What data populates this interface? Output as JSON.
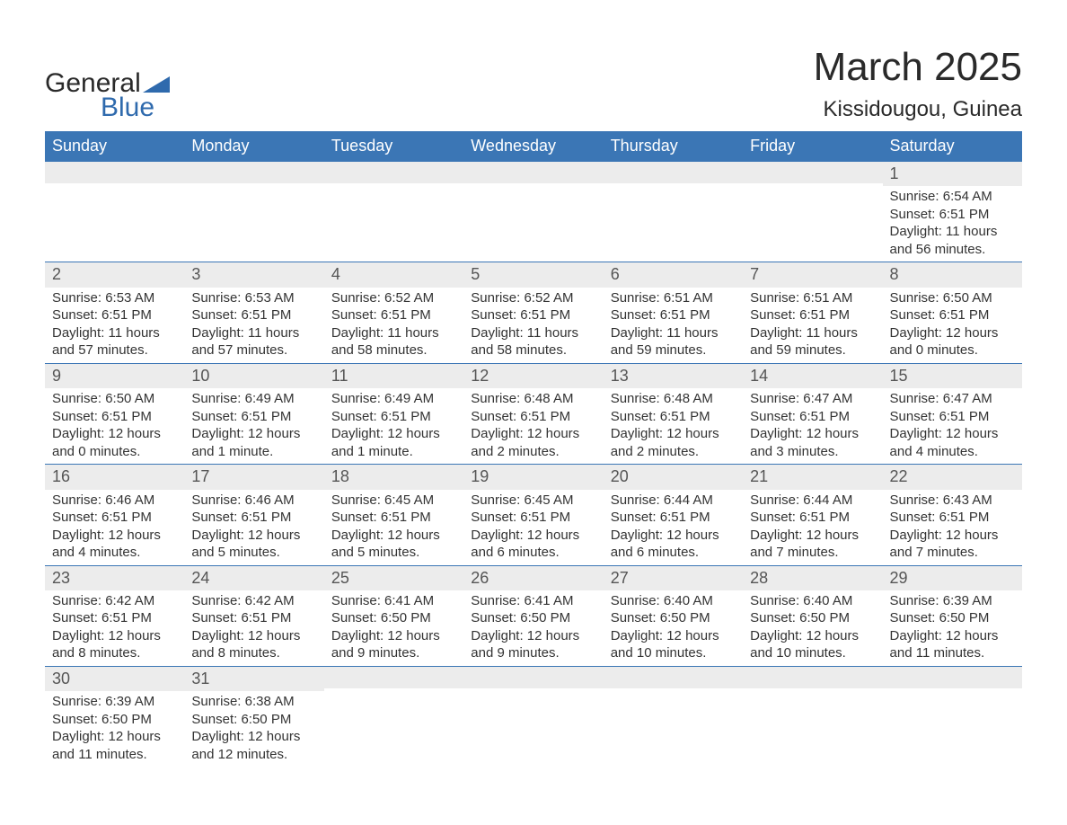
{
  "logo": {
    "text1": "General",
    "text2": "Blue",
    "accent_color": "#2f6aad"
  },
  "title": {
    "month": "March 2025",
    "location": "Kissidougou, Guinea"
  },
  "colors": {
    "header_bg": "#3b76b5",
    "header_text": "#ffffff",
    "daynum_bg": "#ececec",
    "row_border": "#3b76b5",
    "body_text": "#333333"
  },
  "weekdays": [
    "Sunday",
    "Monday",
    "Tuesday",
    "Wednesday",
    "Thursday",
    "Friday",
    "Saturday"
  ],
  "leading_blanks": 6,
  "days": [
    {
      "n": "1",
      "sunrise": "Sunrise: 6:54 AM",
      "sunset": "Sunset: 6:51 PM",
      "daylight": "Daylight: 11 hours and 56 minutes."
    },
    {
      "n": "2",
      "sunrise": "Sunrise: 6:53 AM",
      "sunset": "Sunset: 6:51 PM",
      "daylight": "Daylight: 11 hours and 57 minutes."
    },
    {
      "n": "3",
      "sunrise": "Sunrise: 6:53 AM",
      "sunset": "Sunset: 6:51 PM",
      "daylight": "Daylight: 11 hours and 57 minutes."
    },
    {
      "n": "4",
      "sunrise": "Sunrise: 6:52 AM",
      "sunset": "Sunset: 6:51 PM",
      "daylight": "Daylight: 11 hours and 58 minutes."
    },
    {
      "n": "5",
      "sunrise": "Sunrise: 6:52 AM",
      "sunset": "Sunset: 6:51 PM",
      "daylight": "Daylight: 11 hours and 58 minutes."
    },
    {
      "n": "6",
      "sunrise": "Sunrise: 6:51 AM",
      "sunset": "Sunset: 6:51 PM",
      "daylight": "Daylight: 11 hours and 59 minutes."
    },
    {
      "n": "7",
      "sunrise": "Sunrise: 6:51 AM",
      "sunset": "Sunset: 6:51 PM",
      "daylight": "Daylight: 11 hours and 59 minutes."
    },
    {
      "n": "8",
      "sunrise": "Sunrise: 6:50 AM",
      "sunset": "Sunset: 6:51 PM",
      "daylight": "Daylight: 12 hours and 0 minutes."
    },
    {
      "n": "9",
      "sunrise": "Sunrise: 6:50 AM",
      "sunset": "Sunset: 6:51 PM",
      "daylight": "Daylight: 12 hours and 0 minutes."
    },
    {
      "n": "10",
      "sunrise": "Sunrise: 6:49 AM",
      "sunset": "Sunset: 6:51 PM",
      "daylight": "Daylight: 12 hours and 1 minute."
    },
    {
      "n": "11",
      "sunrise": "Sunrise: 6:49 AM",
      "sunset": "Sunset: 6:51 PM",
      "daylight": "Daylight: 12 hours and 1 minute."
    },
    {
      "n": "12",
      "sunrise": "Sunrise: 6:48 AM",
      "sunset": "Sunset: 6:51 PM",
      "daylight": "Daylight: 12 hours and 2 minutes."
    },
    {
      "n": "13",
      "sunrise": "Sunrise: 6:48 AM",
      "sunset": "Sunset: 6:51 PM",
      "daylight": "Daylight: 12 hours and 2 minutes."
    },
    {
      "n": "14",
      "sunrise": "Sunrise: 6:47 AM",
      "sunset": "Sunset: 6:51 PM",
      "daylight": "Daylight: 12 hours and 3 minutes."
    },
    {
      "n": "15",
      "sunrise": "Sunrise: 6:47 AM",
      "sunset": "Sunset: 6:51 PM",
      "daylight": "Daylight: 12 hours and 4 minutes."
    },
    {
      "n": "16",
      "sunrise": "Sunrise: 6:46 AM",
      "sunset": "Sunset: 6:51 PM",
      "daylight": "Daylight: 12 hours and 4 minutes."
    },
    {
      "n": "17",
      "sunrise": "Sunrise: 6:46 AM",
      "sunset": "Sunset: 6:51 PM",
      "daylight": "Daylight: 12 hours and 5 minutes."
    },
    {
      "n": "18",
      "sunrise": "Sunrise: 6:45 AM",
      "sunset": "Sunset: 6:51 PM",
      "daylight": "Daylight: 12 hours and 5 minutes."
    },
    {
      "n": "19",
      "sunrise": "Sunrise: 6:45 AM",
      "sunset": "Sunset: 6:51 PM",
      "daylight": "Daylight: 12 hours and 6 minutes."
    },
    {
      "n": "20",
      "sunrise": "Sunrise: 6:44 AM",
      "sunset": "Sunset: 6:51 PM",
      "daylight": "Daylight: 12 hours and 6 minutes."
    },
    {
      "n": "21",
      "sunrise": "Sunrise: 6:44 AM",
      "sunset": "Sunset: 6:51 PM",
      "daylight": "Daylight: 12 hours and 7 minutes."
    },
    {
      "n": "22",
      "sunrise": "Sunrise: 6:43 AM",
      "sunset": "Sunset: 6:51 PM",
      "daylight": "Daylight: 12 hours and 7 minutes."
    },
    {
      "n": "23",
      "sunrise": "Sunrise: 6:42 AM",
      "sunset": "Sunset: 6:51 PM",
      "daylight": "Daylight: 12 hours and 8 minutes."
    },
    {
      "n": "24",
      "sunrise": "Sunrise: 6:42 AM",
      "sunset": "Sunset: 6:51 PM",
      "daylight": "Daylight: 12 hours and 8 minutes."
    },
    {
      "n": "25",
      "sunrise": "Sunrise: 6:41 AM",
      "sunset": "Sunset: 6:50 PM",
      "daylight": "Daylight: 12 hours and 9 minutes."
    },
    {
      "n": "26",
      "sunrise": "Sunrise: 6:41 AM",
      "sunset": "Sunset: 6:50 PM",
      "daylight": "Daylight: 12 hours and 9 minutes."
    },
    {
      "n": "27",
      "sunrise": "Sunrise: 6:40 AM",
      "sunset": "Sunset: 6:50 PM",
      "daylight": "Daylight: 12 hours and 10 minutes."
    },
    {
      "n": "28",
      "sunrise": "Sunrise: 6:40 AM",
      "sunset": "Sunset: 6:50 PM",
      "daylight": "Daylight: 12 hours and 10 minutes."
    },
    {
      "n": "29",
      "sunrise": "Sunrise: 6:39 AM",
      "sunset": "Sunset: 6:50 PM",
      "daylight": "Daylight: 12 hours and 11 minutes."
    },
    {
      "n": "30",
      "sunrise": "Sunrise: 6:39 AM",
      "sunset": "Sunset: 6:50 PM",
      "daylight": "Daylight: 12 hours and 11 minutes."
    },
    {
      "n": "31",
      "sunrise": "Sunrise: 6:38 AM",
      "sunset": "Sunset: 6:50 PM",
      "daylight": "Daylight: 12 hours and 12 minutes."
    }
  ]
}
